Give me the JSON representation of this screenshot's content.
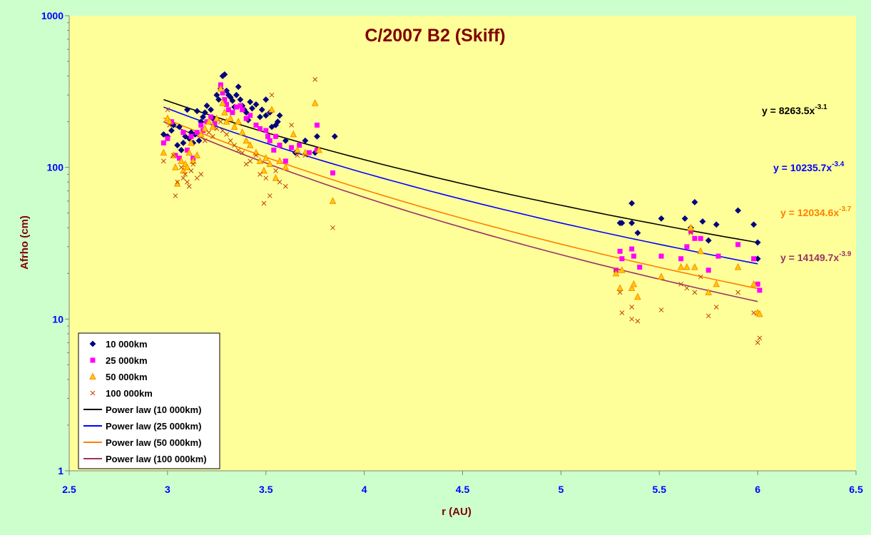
{
  "chart_data": {
    "type": "scatter",
    "title": "C/2007 B2 (Skiff)",
    "xlabel": "r (AU)",
    "ylabel": "Afrho (cm)",
    "xlim": [
      2.5,
      6.5
    ],
    "ylim": [
      1,
      1000
    ],
    "yscale": "log",
    "x_ticks": [
      "2.5",
      "3",
      "3.5",
      "4",
      "4.5",
      "5",
      "5.5",
      "6",
      "6.5"
    ],
    "y_ticks": [
      "1",
      "10",
      "100",
      "1000"
    ],
    "grid": false,
    "legend_position": "bottom-left",
    "colors": {
      "plot_background": "#ffff99",
      "page_background": "#ccffcc",
      "title": "#800000",
      "axis_title": "#800000",
      "tick_labels": "#0000ff",
      "axis_line": "#808080"
    },
    "series": [
      {
        "name": "10 000km",
        "marker": "diamond",
        "color": "#000080",
        "points": [
          [
            2.98,
            165
          ],
          [
            3.0,
            160
          ],
          [
            3.02,
            175
          ],
          [
            3.03,
            190
          ],
          [
            3.05,
            140
          ],
          [
            3.06,
            185
          ],
          [
            3.07,
            130
          ],
          [
            3.08,
            145
          ],
          [
            3.09,
            160
          ],
          [
            3.1,
            240
          ],
          [
            3.11,
            155
          ],
          [
            3.12,
            170
          ],
          [
            3.13,
            145
          ],
          [
            3.14,
            165
          ],
          [
            3.15,
            235
          ],
          [
            3.16,
            150
          ],
          [
            3.17,
            200
          ],
          [
            3.18,
            215
          ],
          [
            3.19,
            230
          ],
          [
            3.2,
            255
          ],
          [
            3.22,
            240
          ],
          [
            3.23,
            210
          ],
          [
            3.25,
            300
          ],
          [
            3.26,
            280
          ],
          [
            3.27,
            330
          ],
          [
            3.28,
            400
          ],
          [
            3.29,
            410
          ],
          [
            3.3,
            320
          ],
          [
            3.31,
            300
          ],
          [
            3.32,
            290
          ],
          [
            3.33,
            275
          ],
          [
            3.34,
            250
          ],
          [
            3.35,
            300
          ],
          [
            3.36,
            340
          ],
          [
            3.37,
            280
          ],
          [
            3.38,
            255
          ],
          [
            3.39,
            240
          ],
          [
            3.4,
            230
          ],
          [
            3.41,
            205
          ],
          [
            3.42,
            270
          ],
          [
            3.43,
            245
          ],
          [
            3.45,
            260
          ],
          [
            3.47,
            215
          ],
          [
            3.48,
            240
          ],
          [
            3.5,
            220
          ],
          [
            3.5,
            280
          ],
          [
            3.52,
            230
          ],
          [
            3.53,
            185
          ],
          [
            3.55,
            190
          ],
          [
            3.56,
            200
          ],
          [
            3.57,
            220
          ],
          [
            3.6,
            150
          ],
          [
            3.65,
            125
          ],
          [
            3.7,
            150
          ],
          [
            3.76,
            160
          ],
          [
            3.75,
            125
          ],
          [
            3.85,
            160
          ],
          [
            5.3,
            43
          ],
          [
            5.31,
            43
          ],
          [
            5.36,
            58
          ],
          [
            5.36,
            43
          ],
          [
            5.39,
            37
          ],
          [
            5.51,
            46
          ],
          [
            5.63,
            46
          ],
          [
            5.66,
            40
          ],
          [
            5.68,
            59
          ],
          [
            5.72,
            44
          ],
          [
            5.75,
            33
          ],
          [
            5.79,
            42
          ],
          [
            5.9,
            52
          ],
          [
            5.98,
            42
          ],
          [
            6.0,
            32
          ],
          [
            6.0,
            25
          ]
        ]
      },
      {
        "name": "25 000km",
        "marker": "square",
        "color": "#ff00ff",
        "points": [
          [
            2.98,
            145
          ],
          [
            3.0,
            155
          ],
          [
            3.02,
            200
          ],
          [
            3.04,
            120
          ],
          [
            3.06,
            115
          ],
          [
            3.08,
            170
          ],
          [
            3.1,
            130
          ],
          [
            3.12,
            160
          ],
          [
            3.13,
            115
          ],
          [
            3.15,
            170
          ],
          [
            3.17,
            190
          ],
          [
            3.18,
            175
          ],
          [
            3.2,
            200
          ],
          [
            3.22,
            215
          ],
          [
            3.24,
            195
          ],
          [
            3.27,
            350
          ],
          [
            3.28,
            310
          ],
          [
            3.29,
            280
          ],
          [
            3.3,
            260
          ],
          [
            3.31,
            240
          ],
          [
            3.33,
            230
          ],
          [
            3.35,
            250
          ],
          [
            3.37,
            255
          ],
          [
            3.38,
            240
          ],
          [
            3.4,
            210
          ],
          [
            3.42,
            220
          ],
          [
            3.45,
            190
          ],
          [
            3.47,
            180
          ],
          [
            3.5,
            175
          ],
          [
            3.51,
            160
          ],
          [
            3.52,
            150
          ],
          [
            3.54,
            130
          ],
          [
            3.55,
            160
          ],
          [
            3.57,
            140
          ],
          [
            3.6,
            110
          ],
          [
            3.63,
            135
          ],
          [
            3.67,
            140
          ],
          [
            3.72,
            125
          ],
          [
            3.76,
            190
          ],
          [
            3.76,
            130
          ],
          [
            3.84,
            92
          ],
          [
            5.28,
            21
          ],
          [
            5.3,
            28
          ],
          [
            5.31,
            25
          ],
          [
            5.36,
            29
          ],
          [
            5.37,
            26
          ],
          [
            5.4,
            22
          ],
          [
            5.51,
            26
          ],
          [
            5.61,
            25
          ],
          [
            5.64,
            30
          ],
          [
            5.66,
            38
          ],
          [
            5.68,
            34
          ],
          [
            5.71,
            34
          ],
          [
            5.75,
            21
          ],
          [
            5.8,
            26
          ],
          [
            5.9,
            31
          ],
          [
            5.98,
            25
          ],
          [
            6.0,
            17
          ],
          [
            6.01,
            15.5
          ]
        ]
      },
      {
        "name": "50 000km",
        "marker": "triangle",
        "color": "#ff8c00",
        "points": [
          [
            2.98,
            125
          ],
          [
            3.0,
            210
          ],
          [
            3.01,
            200
          ],
          [
            3.03,
            120
          ],
          [
            3.04,
            100
          ],
          [
            3.05,
            78
          ],
          [
            3.07,
            110
          ],
          [
            3.08,
            95
          ],
          [
            3.09,
            105
          ],
          [
            3.1,
            100
          ],
          [
            3.11,
            125
          ],
          [
            3.12,
            145
          ],
          [
            3.13,
            110
          ],
          [
            3.15,
            120
          ],
          [
            3.17,
            165
          ],
          [
            3.19,
            180
          ],
          [
            3.21,
            200
          ],
          [
            3.23,
            185
          ],
          [
            3.25,
            210
          ],
          [
            3.27,
            330
          ],
          [
            3.28,
            265
          ],
          [
            3.29,
            230
          ],
          [
            3.3,
            200
          ],
          [
            3.32,
            210
          ],
          [
            3.34,
            185
          ],
          [
            3.36,
            200
          ],
          [
            3.38,
            170
          ],
          [
            3.4,
            150
          ],
          [
            3.42,
            140
          ],
          [
            3.45,
            125
          ],
          [
            3.47,
            110
          ],
          [
            3.49,
            95
          ],
          [
            3.5,
            115
          ],
          [
            3.52,
            105
          ],
          [
            3.53,
            240
          ],
          [
            3.55,
            85
          ],
          [
            3.57,
            110
          ],
          [
            3.6,
            100
          ],
          [
            3.64,
            165
          ],
          [
            3.66,
            130
          ],
          [
            3.7,
            125
          ],
          [
            3.75,
            265
          ],
          [
            3.77,
            130
          ],
          [
            3.84,
            60
          ],
          [
            5.28,
            20
          ],
          [
            5.3,
            16
          ],
          [
            5.31,
            21
          ],
          [
            5.36,
            16
          ],
          [
            5.37,
            17
          ],
          [
            5.39,
            14
          ],
          [
            5.51,
            19
          ],
          [
            5.61,
            22
          ],
          [
            5.64,
            22
          ],
          [
            5.66,
            40
          ],
          [
            5.68,
            22
          ],
          [
            5.71,
            28
          ],
          [
            5.75,
            15
          ],
          [
            5.79,
            17
          ],
          [
            5.9,
            22
          ],
          [
            5.98,
            17
          ],
          [
            6.0,
            11
          ],
          [
            6.01,
            10.8
          ]
        ]
      },
      {
        "name": "100 000km",
        "marker": "x",
        "color": "#c04000",
        "points": [
          [
            2.98,
            110
          ],
          [
            3.0,
            240
          ],
          [
            3.01,
            190
          ],
          [
            3.03,
            120
          ],
          [
            3.04,
            65
          ],
          [
            3.05,
            80
          ],
          [
            3.07,
            100
          ],
          [
            3.08,
            85
          ],
          [
            3.09,
            90
          ],
          [
            3.1,
            80
          ],
          [
            3.11,
            75
          ],
          [
            3.12,
            95
          ],
          [
            3.13,
            105
          ],
          [
            3.15,
            85
          ],
          [
            3.17,
            90
          ],
          [
            3.19,
            150
          ],
          [
            3.21,
            170
          ],
          [
            3.23,
            160
          ],
          [
            3.25,
            180
          ],
          [
            3.27,
            200
          ],
          [
            3.28,
            175
          ],
          [
            3.3,
            165
          ],
          [
            3.32,
            150
          ],
          [
            3.34,
            140
          ],
          [
            3.36,
            130
          ],
          [
            3.38,
            125
          ],
          [
            3.4,
            105
          ],
          [
            3.42,
            110
          ],
          [
            3.45,
            120
          ],
          [
            3.47,
            90
          ],
          [
            3.49,
            58
          ],
          [
            3.5,
            85
          ],
          [
            3.52,
            65
          ],
          [
            3.53,
            300
          ],
          [
            3.55,
            95
          ],
          [
            3.57,
            80
          ],
          [
            3.6,
            75
          ],
          [
            3.63,
            190
          ],
          [
            3.66,
            120
          ],
          [
            3.7,
            120
          ],
          [
            3.75,
            380
          ],
          [
            3.84,
            40
          ],
          [
            5.28,
            21
          ],
          [
            5.3,
            15
          ],
          [
            5.31,
            11
          ],
          [
            5.36,
            10
          ],
          [
            5.36,
            12
          ],
          [
            5.39,
            9.7
          ],
          [
            5.51,
            11.5
          ],
          [
            5.61,
            17
          ],
          [
            5.64,
            16
          ],
          [
            5.66,
            37
          ],
          [
            5.68,
            15
          ],
          [
            5.71,
            19
          ],
          [
            5.75,
            10.5
          ],
          [
            5.79,
            12
          ],
          [
            5.9,
            15
          ],
          [
            5.98,
            11
          ],
          [
            6.0,
            7
          ],
          [
            6.01,
            7.5
          ]
        ]
      }
    ],
    "trendlines": [
      {
        "name": "Power law (10 000km)",
        "coefficient": 8263.5,
        "exponent": -3.1,
        "x_range": [
          2.98,
          6.0
        ],
        "color": "#000000",
        "equation_prefix": "y = 8263.5x",
        "equation_exponent": "-3.1"
      },
      {
        "name": "Power law (25 000km)",
        "coefficient": 10235.7,
        "exponent": -3.4,
        "x_range": [
          2.98,
          6.0
        ],
        "color": "#0000ff",
        "equation_prefix": "y = 10235.7x",
        "equation_exponent": "-3.4"
      },
      {
        "name": "Power law (50 000km)",
        "coefficient": 12034.6,
        "exponent": -3.7,
        "x_range": [
          2.98,
          6.0
        ],
        "color": "#ff8000",
        "equation_prefix": "y = 12034.6x",
        "equation_exponent": "-3.7"
      },
      {
        "name": "Power law (100 000km)",
        "coefficient": 14149.7,
        "exponent": -3.9,
        "x_range": [
          2.98,
          6.0
        ],
        "color": "#993366",
        "equation_prefix": "y = 14149.7x",
        "equation_exponent": "-3.9"
      }
    ]
  }
}
